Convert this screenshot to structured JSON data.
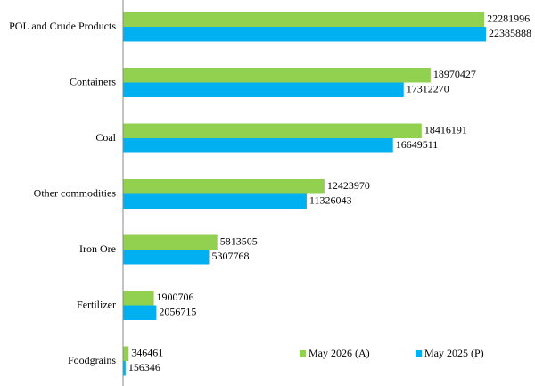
{
  "chart_data": {
    "type": "bar",
    "orientation": "horizontal",
    "categories": [
      "POL and Crude Products",
      "Containers",
      "Coal",
      "Other commodities",
      "Iron Ore",
      "Fertilizer",
      "Foodgrains"
    ],
    "series": [
      {
        "name": "May 2026 (A)",
        "color": "#92d050",
        "values": [
          22281996,
          18970427,
          18416191,
          12423970,
          5813505,
          1900706,
          346461
        ]
      },
      {
        "name": "May 2025 (P)",
        "color": "#00b0f0",
        "values": [
          22385888,
          17312270,
          16649511,
          11326043,
          5307768,
          2056715,
          156346
        ]
      }
    ],
    "legend": "bottom-right",
    "grid": false
  }
}
